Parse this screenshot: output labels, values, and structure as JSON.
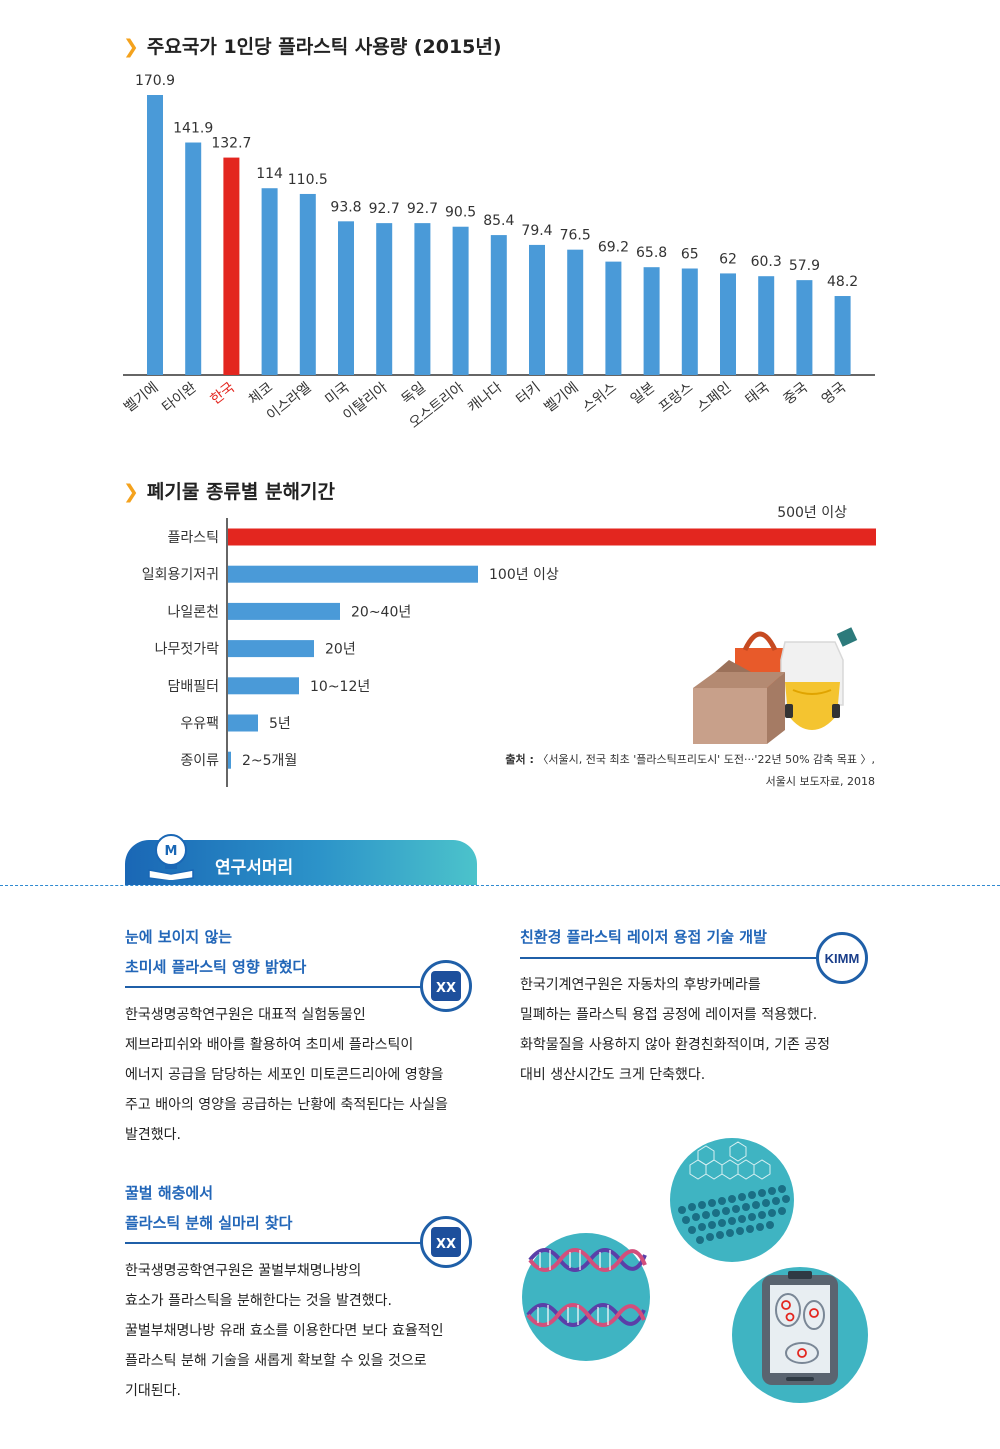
{
  "section1": {
    "title": "주요국가 1인당 플라스틱 사용량 (2015년)"
  },
  "section2": {
    "title": "폐기물 종류별 분해기간"
  },
  "chart_data": [
    {
      "type": "bar",
      "title": "주요국가 1인당 플라스틱 사용량 (2015년)",
      "categories": [
        "벨기에",
        "타이완",
        "한국",
        "체코",
        "이스라엘",
        "미국",
        "이탈리아",
        "독일",
        "오스트리아",
        "캐나다",
        "터키",
        "벨기에",
        "스위스",
        "일본",
        "프랑스",
        "스페인",
        "태국",
        "중국",
        "영국"
      ],
      "value_labels": [
        "170.9",
        "141.9",
        "132.7",
        "114",
        "110.5",
        "93.8",
        "92.7",
        "92.7",
        "90.5",
        "85.4",
        "79.4",
        "76.5",
        "69.2",
        "65.8",
        "65",
        "62",
        "60.3",
        "57.9",
        "48.2"
      ],
      "values": [
        170.9,
        141.9,
        132.7,
        114,
        110.5,
        93.8,
        92.7,
        92.7,
        90.5,
        85.4,
        79.4,
        76.5,
        69.2,
        65.8,
        65,
        62,
        60.3,
        57.9,
        48.2
      ],
      "highlight_index": 2,
      "colors": {
        "bar": "#4a9ad8",
        "highlight": "#e3261f",
        "axis": "#333333"
      },
      "ylim": [
        0,
        180
      ],
      "grid": false
    },
    {
      "type": "bar",
      "orientation": "horizontal",
      "title": "폐기물 종류별 분해기간",
      "categories": [
        "플라스틱",
        "일회용기저귀",
        "나일론천",
        "나무젓가락",
        "담배필터",
        "우유팩",
        "종이류"
      ],
      "value_labels": [
        "500년 이상",
        "100년 이상",
        "20~40년",
        "20년",
        "10~12년",
        "5년",
        "2~5개월"
      ],
      "values": [
        500,
        100,
        30,
        20,
        11,
        5,
        0.3
      ],
      "colors": {
        "bar": "#4a9ad8",
        "highlight": "#e3261f",
        "axis": "#333333"
      },
      "highlight_index": 0
    }
  ],
  "source": {
    "label": "출처 :",
    "line1": "〈서울시, 전국 최초 '플라스틱프리도시' 도전···'22년 50% 감축 목표 〉,",
    "line2": "서울시 보도자료, 2018"
  },
  "summary": {
    "title": "연구서머리"
  },
  "articles": {
    "a1": {
      "title1": "눈에 보이지 않는",
      "title2": "초미세 플라스틱 영향 밝혔다",
      "lines": [
        "한국생명공학연구원은 대표적 실험동물인",
        "제브라피쉬와 배아를 활용하여 초미세 플라스틱이",
        "에너지 공급을 담당하는 세포인 미토콘드리아에 영향을",
        "주고 배아의 영양을 공급하는 난황에 축적된다는 사실을",
        "발견했다."
      ]
    },
    "a2": {
      "title1": "꿀벌 해충에서",
      "title2": "플라스틱 분해 실마리 찾다",
      "lines": [
        "한국생명공학연구원은 꿀벌부채명나방의",
        "효소가 플라스틱을 분해한다는 것을 발견했다.",
        "꿀벌부채명나방 유래 효소를 이용한다면 보다 효율적인",
        "플라스틱 분해 기술을 새롭게 확보할 수 있을 것으로",
        "기대된다."
      ]
    },
    "a3": {
      "title1": "친환경 플라스틱 레이저 용접 기술 개발",
      "logo": "KIMM",
      "lines": [
        "한국기계연구원은 자동차의 후방카메라를",
        "밀폐하는 플라스틱 용접 공정에 레이저를 적용했다.",
        "화학물질을 사용하지 않아 환경친화적이며, 기존 공정",
        "대비 생산시간도 크게 단축했다."
      ]
    }
  },
  "icons": {
    "section_marker": "chevron-right-icon",
    "summary_icon": "lightbulb-book-icon",
    "kribb_logo": "kribb-logo-icon",
    "kimm_logo": "kimm-logo-icon"
  }
}
